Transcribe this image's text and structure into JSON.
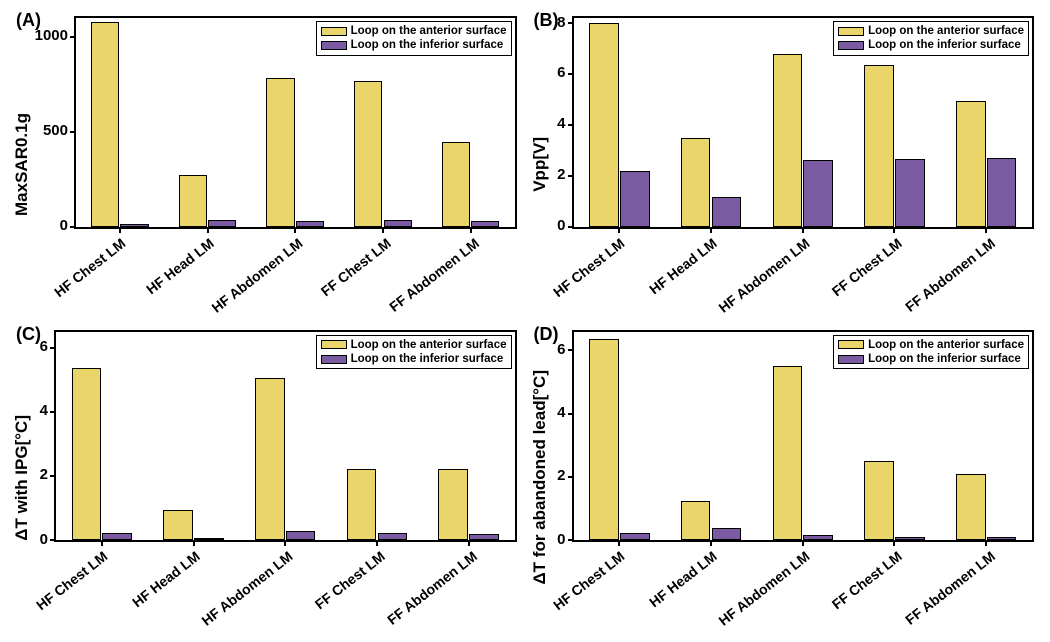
{
  "colors": {
    "anterior": "#e9d56a",
    "inferior": "#7a5aa1",
    "axis": "#000000",
    "bg": "#ffffff"
  },
  "legend": {
    "anterior": "Loop on the anterior surface",
    "inferior": "Loop on the inferior surface"
  },
  "categories": [
    "HF Chest LM",
    "HF Head LM",
    "HF Abdomen LM",
    "FF Chest LM",
    "FF Abdomen LM"
  ],
  "panels": {
    "A": {
      "label": "(A)",
      "ylabel": "MaxSAR0.1g",
      "ymax": 1100,
      "yticks": [
        0,
        500,
        1000
      ],
      "anterior": [
        1080,
        270,
        785,
        770,
        445
      ],
      "inferior": [
        12,
        35,
        30,
        32,
        28
      ]
    },
    "B": {
      "label": "(B)",
      "ylabel": "Vpp[V]",
      "ymax": 8.2,
      "yticks": [
        0,
        2,
        4,
        6,
        8
      ],
      "anterior": [
        8.0,
        3.5,
        6.8,
        6.35,
        4.95
      ],
      "inferior": [
        2.2,
        1.15,
        2.6,
        2.65,
        2.7
      ]
    },
    "C": {
      "label": "(C)",
      "ylabel": "ΔT with IPG[°C]",
      "ymax": 6.5,
      "yticks": [
        0,
        2,
        4,
        6
      ],
      "anterior": [
        5.35,
        0.95,
        5.05,
        2.2,
        2.2
      ],
      "inferior": [
        0.22,
        0.05,
        0.28,
        0.22,
        0.18
      ]
    },
    "D": {
      "label": "(D)",
      "ylabel": "ΔT for abandoned lead[°C]",
      "ymax": 6.6,
      "yticks": [
        0,
        2,
        4,
        6
      ],
      "anterior": [
        6.35,
        1.25,
        5.5,
        2.5,
        2.1
      ],
      "inferior": [
        0.22,
        0.38,
        0.15,
        0.1,
        0.08
      ]
    }
  },
  "style": {
    "axis_width": 2,
    "bar_border_width": 1,
    "panel_label_fontsize": 18,
    "ylabel_fontsize": 17,
    "tick_fontsize": 15,
    "xlabel_fontsize": 14,
    "xlabel_angle_deg": -38,
    "legend_fontsize": 11.5,
    "group_width_pct": 14,
    "group_positions_pct": [
      10,
      30,
      50,
      70,
      90
    ]
  }
}
